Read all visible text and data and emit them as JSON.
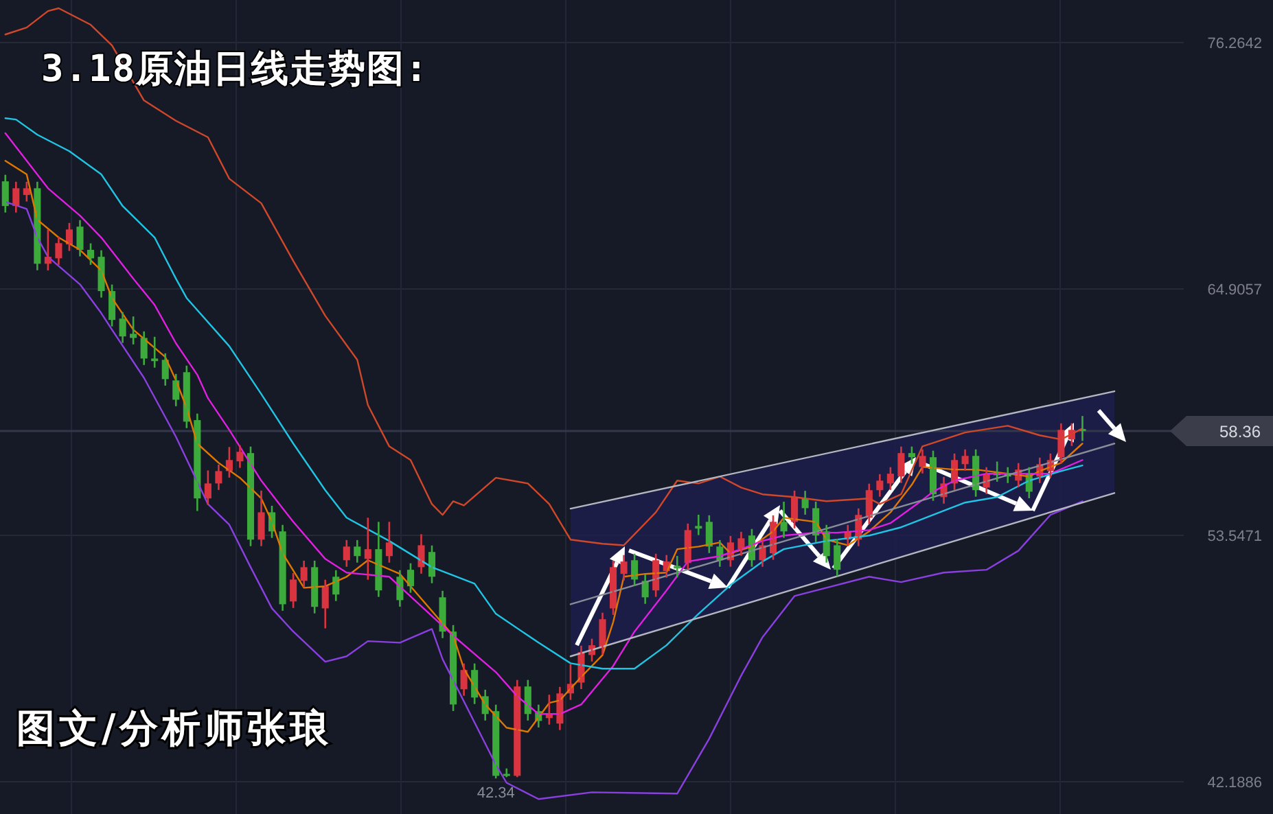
{
  "chart_data": {
    "type": "candlestick",
    "title": "3.18原油日线走势图:",
    "annotations": [
      "图文/分析师张琅",
      {
        "text": "42.34",
        "y": 42.34
      }
    ],
    "categories": [
      null,
      null,
      null,
      null,
      null,
      null,
      null,
      null,
      null,
      null,
      null,
      null,
      null,
      null,
      null,
      null,
      null,
      null,
      null,
      null,
      null,
      null,
      null,
      null,
      null,
      null,
      null,
      null,
      null,
      null,
      null,
      null,
      null,
      null,
      null,
      null,
      null,
      null,
      null,
      null,
      null,
      null,
      null,
      null,
      null,
      null,
      null,
      null,
      null,
      null,
      null,
      null,
      null,
      null,
      null,
      null,
      null,
      null,
      null,
      null,
      null,
      null,
      null,
      null,
      null,
      null,
      null,
      null,
      null,
      null,
      null,
      null,
      null,
      null,
      null,
      null,
      null,
      null,
      null,
      null,
      null,
      null,
      null,
      null,
      null,
      null,
      null,
      null,
      null,
      null,
      null,
      null,
      null,
      null,
      null,
      null,
      null,
      null,
      null,
      null,
      null,
      null,
      null,
      null,
      null,
      null,
      null,
      null,
      null,
      null,
      null
    ],
    "ohlc": [
      [
        69.87,
        70.17,
        68.43,
        68.73
      ],
      [
        68.73,
        69.85,
        68.43,
        69.55
      ],
      [
        69.24,
        69.85,
        68.94,
        69.55
      ],
      [
        69.55,
        69.85,
        65.77,
        66.07
      ],
      [
        66.07,
        67.65,
        65.76,
        66.39
      ],
      [
        66.32,
        67.32,
        66.02,
        67.02
      ],
      [
        66.96,
        67.95,
        66.66,
        67.65
      ],
      [
        67.78,
        68.08,
        66.41,
        66.71
      ],
      [
        66.71,
        67.01,
        66.02,
        66.32
      ],
      [
        66.39,
        66.69,
        64.51,
        64.81
      ],
      [
        64.81,
        65.11,
        63.18,
        63.48
      ],
      [
        63.54,
        63.84,
        62.42,
        62.72
      ],
      [
        62.84,
        63.64,
        62.35,
        62.65
      ],
      [
        62.65,
        62.95,
        61.4,
        61.7
      ],
      [
        61.7,
        62.7,
        61.28,
        61.58
      ],
      [
        61.64,
        61.94,
        60.45,
        60.75
      ],
      [
        60.69,
        60.99,
        59.5,
        59.8
      ],
      [
        61.07,
        61.37,
        58.49,
        58.79
      ],
      [
        58.86,
        59.16,
        54.67,
        55.25
      ],
      [
        55.25,
        56.54,
        54.95,
        55.94
      ],
      [
        55.94,
        56.81,
        55.64,
        56.51
      ],
      [
        56.51,
        57.62,
        56.21,
        57.02
      ],
      [
        56.96,
        57.7,
        56.66,
        57.4
      ],
      [
        57.34,
        57.64,
        53.05,
        53.35
      ],
      [
        53.35,
        55.61,
        53.05,
        54.61
      ],
      [
        54.61,
        54.91,
        53.43,
        53.73
      ],
      [
        53.73,
        54.03,
        50.07,
        50.37
      ],
      [
        50.5,
        51.81,
        50.2,
        51.51
      ],
      [
        51.45,
        52.38,
        51.15,
        52.08
      ],
      [
        52.08,
        52.38,
        49.95,
        50.25
      ],
      [
        50.18,
        51.5,
        49.26,
        51.2
      ],
      [
        51.64,
        51.94,
        50.52,
        50.82
      ],
      [
        52.4,
        53.33,
        52.1,
        53.03
      ],
      [
        53.03,
        53.33,
        52.29,
        52.59
      ],
      [
        52.46,
        54.36,
        51.5,
        52.91
      ],
      [
        52.91,
        54.17,
        50.71,
        51.01
      ],
      [
        52.59,
        54.17,
        52.29,
        53.22
      ],
      [
        51.64,
        51.94,
        50.26,
        50.56
      ],
      [
        51.96,
        52.26,
        50.9,
        51.2
      ],
      [
        52.08,
        53.6,
        51.78,
        53.09
      ],
      [
        52.78,
        53.08,
        51.34,
        51.64
      ],
      [
        50.69,
        50.99,
        48.81,
        49.11
      ],
      [
        49.11,
        49.41,
        45.45,
        45.75
      ],
      [
        46.45,
        47.64,
        46.15,
        47.34
      ],
      [
        47.34,
        47.64,
        45.77,
        46.07
      ],
      [
        46.13,
        46.43,
        45.01,
        45.31
      ],
      [
        45.44,
        45.74,
        42.34,
        42.46
      ],
      [
        42.55,
        42.8,
        42.4,
        42.46
      ],
      [
        42.46,
        46.88,
        42.4,
        46.58
      ],
      [
        46.58,
        46.88,
        45.01,
        45.31
      ],
      [
        45.44,
        45.74,
        44.69,
        44.99
      ],
      [
        45.12,
        46.2,
        44.82,
        45.31
      ],
      [
        44.87,
        46.56,
        44.57,
        46.26
      ],
      [
        46.26,
        47.6,
        45.96,
        46.7
      ],
      [
        46.76,
        48.46,
        46.46,
        48.16
      ],
      [
        48.03,
        48.78,
        47.73,
        48.48
      ],
      [
        48.35,
        49.98,
        48.05,
        49.68
      ],
      [
        50.18,
        52.38,
        49.88,
        52.08
      ],
      [
        51.77,
        52.64,
        51.47,
        52.34
      ],
      [
        52.4,
        52.7,
        51.21,
        51.51
      ],
      [
        51.45,
        51.75,
        50.39,
        50.69
      ],
      [
        51.01,
        52.7,
        50.71,
        52.4
      ],
      [
        51.9,
        52.64,
        51.6,
        52.34
      ],
      [
        52.14,
        52.6,
        51.6,
        52.02
      ],
      [
        52.27,
        54.09,
        51.97,
        53.79
      ],
      [
        53.98,
        54.5,
        53.56,
        53.86
      ],
      [
        54.17,
        54.47,
        52.73,
        53.03
      ],
      [
        53.03,
        53.33,
        52.1,
        52.4
      ],
      [
        52.4,
        53.52,
        52.1,
        53.22
      ],
      [
        52.91,
        53.71,
        52.61,
        53.41
      ],
      [
        53.54,
        53.84,
        52.1,
        52.4
      ],
      [
        52.4,
        53.39,
        52.1,
        53.09
      ],
      [
        52.72,
        54.47,
        52.42,
        54.17
      ],
      [
        54.17,
        55.1,
        53.43,
        53.73
      ],
      [
        54.17,
        55.61,
        53.87,
        55.31
      ],
      [
        55.25,
        55.6,
        54.5,
        54.8
      ],
      [
        54.8,
        55.1,
        53.24,
        53.54
      ],
      [
        53.73,
        54.03,
        52.29,
        52.59
      ],
      [
        53.09,
        53.39,
        51.66,
        51.96
      ],
      [
        53.35,
        54.03,
        53.05,
        53.73
      ],
      [
        53.35,
        54.79,
        53.05,
        54.49
      ],
      [
        54.36,
        55.93,
        54.06,
        55.63
      ],
      [
        55.63,
        56.37,
        55.33,
        56.07
      ],
      [
        55.94,
        56.69,
        55.64,
        56.39
      ],
      [
        56.26,
        57.64,
        55.96,
        57.34
      ],
      [
        57.34,
        57.64,
        56.85,
        57.15
      ],
      [
        56.7,
        57.51,
        56.4,
        57.21
      ],
      [
        57.15,
        57.45,
        55.14,
        55.44
      ],
      [
        55.31,
        56.24,
        55.01,
        55.94
      ],
      [
        55.94,
        57.32,
        55.64,
        57.02
      ],
      [
        56.83,
        57.51,
        56.53,
        57.21
      ],
      [
        57.21,
        57.51,
        55.33,
        55.63
      ],
      [
        55.75,
        56.69,
        55.45,
        56.39
      ],
      [
        56.45,
        56.95,
        56.02,
        56.32
      ],
      [
        56.39,
        56.69,
        55.96,
        56.26
      ],
      [
        56.07,
        56.88,
        55.77,
        56.58
      ],
      [
        56.39,
        56.69,
        55.26,
        55.56
      ],
      [
        56.26,
        57.13,
        55.96,
        56.83
      ],
      [
        56.51,
        57.32,
        56.21,
        57.02
      ],
      [
        57.15,
        58.71,
        56.85,
        58.41
      ],
      [
        57.97,
        58.71,
        57.67,
        58.41
      ],
      [
        58.45,
        59.05,
        57.9,
        58.36
      ],
      null,
      null,
      null,
      null,
      null,
      null,
      null,
      null,
      null
    ],
    "colors": [
      "#3cab3c",
      "#d9343f",
      "#d9343f",
      "#3cab3c",
      "#d9343f",
      "#d9343f",
      "#d9343f",
      "#3cab3c",
      "#3cab3c",
      "#3cab3c",
      "#3cab3c",
      "#3cab3c",
      "#3cab3c",
      "#3cab3c",
      "#3cab3c",
      "#3cab3c",
      "#3cab3c",
      "#3cab3c",
      "#3cab3c",
      "#d9343f",
      "#d9343f",
      "#d9343f",
      "#d9343f",
      "#3cab3c",
      "#d9343f",
      "#3cab3c",
      "#3cab3c",
      "#d9343f",
      "#d9343f",
      "#3cab3c",
      "#d9343f",
      "#3cab3c",
      "#d9343f",
      "#3cab3c",
      "#d9343f",
      "#3cab3c",
      "#d9343f",
      "#3cab3c",
      "#3cab3c",
      "#d9343f",
      "#3cab3c",
      "#3cab3c",
      "#3cab3c",
      "#d9343f",
      "#3cab3c",
      "#3cab3c",
      "#3cab3c",
      "#3cab3c",
      "#d9343f",
      "#3cab3c",
      "#3cab3c",
      "#d9343f",
      "#d9343f",
      "#d9343f",
      "#d9343f",
      "#d9343f",
      "#d9343f",
      "#d9343f",
      "#d9343f",
      "#3cab3c",
      "#3cab3c",
      "#d9343f",
      "#d9343f",
      "#3cab3c",
      "#d9343f",
      "#3cab3c",
      "#3cab3c",
      "#3cab3c",
      "#d9343f",
      "#d9343f",
      "#3cab3c",
      "#d9343f",
      "#d9343f",
      "#3cab3c",
      "#d9343f",
      "#3cab3c",
      "#3cab3c",
      "#3cab3c",
      "#3cab3c",
      "#d9343f",
      "#d9343f",
      "#d9343f",
      "#d9343f",
      "#d9343f",
      "#d9343f",
      "#3cab3c",
      "#d9343f",
      "#3cab3c",
      "#d9343f",
      "#d9343f",
      "#d9343f",
      "#3cab3c",
      "#d9343f",
      "#3cab3c",
      "#3cab3c",
      "#d9343f",
      "#3cab3c",
      "#d9343f",
      "#d9343f",
      "#d9343f",
      "#d9343f",
      "#3cab3c",
      null,
      null,
      null,
      null,
      null,
      null,
      null,
      null,
      null
    ],
    "series": [
      {
        "type": "line",
        "color": "#e07800",
        "values": [
          70.82,
          null,
          70.19,
          68.1,
          null,
          67.28,
          null,
          66.71,
          null,
          65.76,
          64.49,
          null,
          63.03,
          null,
          null,
          61.77,
          60.69,
          59.43,
          57.78,
          null,
          56.89,
          null,
          56.2,
          null,
          55.25,
          54.17,
          52.72,
          null,
          51.13,
          null,
          51.2,
          null,
          51.64,
          null,
          52.4,
          null,
          null,
          51.77,
          null,
          null,
          null,
          null,
          48.92,
          47.4,
          null,
          45.75,
          null,
          44.68,
          null,
          44.49,
          null,
          45.82,
          45.94,
          null,
          47.02,
          null,
          48.03,
          49.55,
          51.64,
          null,
          51.77,
          null,
          51.83,
          52.91,
          null,
          53.03,
          null,
          53.22,
          52.72,
          null,
          53.03,
          null,
          53.73,
          54.36,
          null,
          null,
          54.17,
          53.35,
          null,
          53.09,
          null,
          53.73,
          null,
          54.61,
          null,
          55.88,
          56.7,
          null,
          null,
          56.58,
          null,
          56.58,
          null,
          null,
          56.39,
          null,
          56.26,
          56.51,
          null,
          56.89,
          null,
          57.78,
          null,
          null,
          null,
          null,
          null,
          null,
          null,
          null,
          null
        ]
      },
      {
        "type": "line",
        "color": "#e020e0",
        "values": [
          72.09,
          null,
          null,
          null,
          69.55,
          null,
          null,
          68.29,
          null,
          67.28,
          null,
          null,
          65.38,
          null,
          64.17,
          null,
          62.4,
          null,
          60.95,
          59.87,
          null,
          58.41,
          null,
          null,
          56.07,
          null,
          54.8,
          54.17,
          null,
          null,
          52.46,
          null,
          51.83,
          null,
          null,
          null,
          51.64,
          null,
          null,
          null,
          null,
          null,
          48.92,
          null,
          null,
          null,
          47.24,
          null,
          46.13,
          null,
          45.31,
          null,
          45.31,
          null,
          45.75,
          null,
          null,
          47.53,
          null,
          49.11,
          null,
          null,
          51.01,
          null,
          52.34,
          null,
          null,
          52.59,
          null,
          52.91,
          null,
          53.29,
          null,
          53.54,
          null,
          null,
          53.67,
          null,
          53.67,
          null,
          null,
          53.79,
          null,
          54.11,
          null,
          null,
          55.18,
          55.56,
          null,
          56.07,
          null,
          null,
          56.39,
          null,
          null,
          56.39,
          null,
          null,
          56.39,
          null,
          null,
          57.02,
          null,
          null,
          null,
          null,
          null,
          null,
          null,
          null,
          null
        ]
      },
      {
        "type": "line",
        "color": "#22c4e4",
        "values": [
          72.78,
          72.72,
          null,
          72.02,
          null,
          null,
          71.26,
          null,
          null,
          70.19,
          null,
          68.73,
          null,
          null,
          67.28,
          null,
          65.38,
          64.49,
          null,
          null,
          null,
          62.27,
          null,
          null,
          60.06,
          null,
          null,
          57.78,
          null,
          null,
          55.63,
          null,
          54.36,
          null,
          null,
          null,
          53.29,
          null,
          null,
          null,
          52.08,
          null,
          null,
          null,
          51.32,
          null,
          49.93,
          null,
          null,
          null,
          48.6,
          null,
          null,
          47.65,
          null,
          null,
          47.4,
          null,
          null,
          47.4,
          null,
          null,
          48.48,
          null,
          null,
          49.93,
          null,
          null,
          51.26,
          null,
          null,
          52.34,
          null,
          52.91,
          null,
          null,
          null,
          53.29,
          null,
          null,
          null,
          53.54,
          null,
          null,
          53.92,
          null,
          null,
          54.49,
          null,
          null,
          55.06,
          null,
          null,
          55.31,
          null,
          null,
          56.07,
          null,
          null,
          56.51,
          null,
          56.77,
          null,
          null,
          null,
          null,
          null,
          null,
          null,
          null,
          null
        ]
      },
      {
        "type": "line",
        "color": "#d0482a",
        "values": [
          76.64,
          null,
          76.96,
          null,
          77.72,
          77.85,
          null,
          null,
          77.09,
          null,
          76.14,
          null,
          null,
          73.6,
          null,
          null,
          72.66,
          null,
          null,
          71.9,
          null,
          69.99,
          null,
          null,
          68.86,
          null,
          null,
          66.2,
          null,
          null,
          63.67,
          null,
          null,
          61.64,
          59.55,
          null,
          57.65,
          null,
          57.02,
          null,
          54.99,
          54.49,
          55.12,
          54.93,
          null,
          null,
          56.2,
          null,
          null,
          55.94,
          null,
          54.99,
          null,
          53.35,
          null,
          null,
          53.16,
          null,
          53.09,
          null,
          null,
          54.61,
          null,
          56.07,
          null,
          55.94,
          null,
          56.26,
          null,
          55.75,
          null,
          55.44,
          null,
          null,
          55.31,
          null,
          null,
          55.12,
          null,
          null,
          null,
          55.25,
          54.99,
          null,
          55.44,
          null,
          57.65,
          null,
          null,
          null,
          58.29,
          null,
          null,
          null,
          58.6,
          null,
          null,
          58.16,
          null,
          57.97,
          null,
          58.47,
          null,
          null,
          null,
          null,
          null,
          null,
          null,
          null,
          null
        ]
      },
      {
        "type": "line",
        "color": "#8a40e0",
        "values": [
          68.92,
          null,
          68.6,
          67.28,
          66.39,
          null,
          null,
          65.12,
          null,
          63.79,
          63.03,
          null,
          null,
          60.81,
          null,
          null,
          58.09,
          null,
          null,
          54.99,
          null,
          54.04,
          null,
          52.08,
          null,
          50.18,
          null,
          49.11,
          null,
          null,
          47.72,
          null,
          47.97,
          null,
          48.67,
          null,
          null,
          48.6,
          null,
          null,
          49.23,
          47.84,
          null,
          null,
          null,
          null,
          42.97,
          42.14,
          null,
          null,
          41.39,
          null,
          null,
          null,
          null,
          41.7,
          null,
          null,
          null,
          null,
          null,
          null,
          null,
          41.64,
          null,
          null,
          44.17,
          null,
          null,
          47.08,
          null,
          48.85,
          null,
          null,
          50.75,
          null,
          null,
          51.13,
          null,
          null,
          null,
          51.64,
          null,
          null,
          51.39,
          null,
          null,
          null,
          51.83,
          null,
          null,
          null,
          51.96,
          null,
          null,
          52.84,
          null,
          null,
          54.49,
          null,
          null,
          55.12,
          null,
          null,
          null,
          null,
          null,
          null,
          null,
          null,
          null
        ]
      },
      {
        "type": "line",
        "color": "#b4b6c0",
        "values": [
          null,
          null,
          null,
          null,
          null,
          null,
          null,
          null,
          null,
          null,
          null,
          null,
          null,
          null,
          null,
          null,
          null,
          null,
          null,
          null,
          null,
          null,
          null,
          null,
          null,
          null,
          null,
          null,
          null,
          null,
          null,
          null,
          null,
          null,
          null,
          null,
          null,
          null,
          null,
          null,
          null,
          null,
          null,
          null,
          null,
          null,
          null,
          null,
          null,
          null,
          null,
          null,
          null,
          54.78,
          null,
          null,
          null,
          null,
          null,
          null,
          null,
          null,
          null,
          null,
          null,
          null,
          null,
          null,
          null,
          null,
          null,
          null,
          null,
          null,
          null,
          null,
          null,
          null,
          null,
          null,
          null,
          null,
          null,
          null,
          null,
          null,
          null,
          null,
          null,
          null,
          null,
          null,
          null,
          null,
          null,
          null,
          null,
          null,
          null,
          null,
          null,
          null,
          null,
          null,
          60.19,
          null,
          null,
          null,
          null,
          null,
          null
        ]
      },
      {
        "type": "line",
        "color": "#8a8c98",
        "values": [
          null,
          null,
          null,
          null,
          null,
          null,
          null,
          null,
          null,
          null,
          null,
          null,
          null,
          null,
          null,
          null,
          null,
          null,
          null,
          null,
          null,
          null,
          null,
          null,
          null,
          null,
          null,
          null,
          null,
          null,
          null,
          null,
          null,
          null,
          null,
          null,
          null,
          null,
          null,
          null,
          null,
          null,
          null,
          null,
          null,
          null,
          null,
          null,
          null,
          null,
          null,
          null,
          null,
          50.37,
          null,
          null,
          null,
          null,
          null,
          null,
          null,
          null,
          null,
          null,
          null,
          null,
          null,
          null,
          null,
          null,
          null,
          null,
          null,
          null,
          null,
          null,
          null,
          null,
          null,
          null,
          null,
          null,
          null,
          null,
          null,
          null,
          null,
          null,
          null,
          null,
          null,
          null,
          null,
          null,
          null,
          null,
          null,
          null,
          null,
          null,
          null,
          null,
          null,
          null,
          57.78,
          null,
          null,
          null,
          null,
          null,
          null
        ]
      },
      {
        "type": "line",
        "color": "#b4b6c0",
        "values": [
          null,
          null,
          null,
          null,
          null,
          null,
          null,
          null,
          null,
          null,
          null,
          null,
          null,
          null,
          null,
          null,
          null,
          null,
          null,
          null,
          null,
          null,
          null,
          null,
          null,
          null,
          null,
          null,
          null,
          null,
          null,
          null,
          null,
          null,
          null,
          null,
          null,
          null,
          null,
          null,
          null,
          null,
          null,
          null,
          null,
          null,
          null,
          null,
          null,
          null,
          null,
          null,
          null,
          47.97,
          null,
          null,
          null,
          null,
          null,
          null,
          null,
          null,
          null,
          null,
          null,
          null,
          null,
          null,
          null,
          null,
          null,
          null,
          null,
          null,
          null,
          null,
          null,
          null,
          null,
          null,
          null,
          null,
          null,
          null,
          null,
          null,
          null,
          null,
          null,
          null,
          null,
          null,
          null,
          null,
          null,
          null,
          null,
          null,
          null,
          null,
          null,
          null,
          null,
          null,
          55.5,
          null,
          null,
          null,
          null,
          null,
          null
        ]
      }
    ],
    "ylim": [
      40.7,
      78.23
    ],
    "yticks": [
      76.2642,
      64.9057,
      53.5471,
      42.1886
    ],
    "tick_labels": "y",
    "grid": true,
    "ref_lines": [
      {
        "axis": "y",
        "value": 58.36,
        "label": "58.36",
        "color": "#34374a"
      }
    ]
  }
}
